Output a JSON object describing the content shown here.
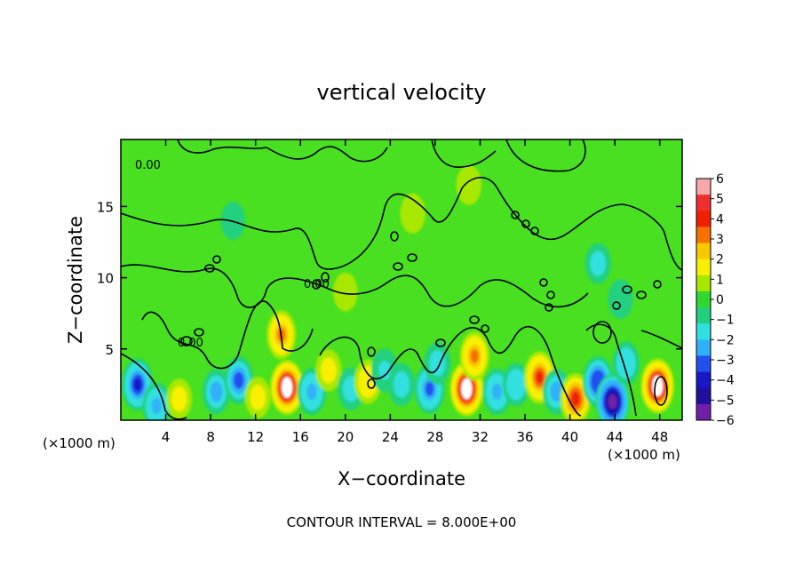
{
  "chart_data": {
    "type": "heatmap",
    "title": "vertical velocity",
    "xlabel": "X−coordinate",
    "ylabel": "Z−coordinate",
    "x_unit": "(×1000 m)",
    "z_unit": "(×1000 m)",
    "footer": "CONTOUR INTERVAL = 8.000E+00",
    "xlim": [
      0,
      50
    ],
    "ylim": [
      0,
      19.7
    ],
    "x_ticks": [
      4,
      8,
      12,
      16,
      20,
      24,
      28,
      32,
      36,
      40,
      44,
      48
    ],
    "y_ticks": [
      5,
      10,
      15
    ],
    "colorbar": {
      "range": [
        -6,
        6
      ],
      "ticks": [
        "6",
        "5",
        "4",
        "3",
        "2",
        "1",
        "0",
        "−1",
        "−2",
        "−3",
        "−4",
        "−5",
        "−6"
      ],
      "colors": [
        "#f8a8a8",
        "#f03030",
        "#f02000",
        "#f87000",
        "#f8c800",
        "#f8f000",
        "#a8e800",
        "#30d830",
        "#20d080",
        "#30e0e0",
        "#30b0f8",
        "#2050f0",
        "#1818c8",
        "#2010a0",
        "#7020a8"
      ]
    },
    "contour_label": "0.00",
    "features": [
      {
        "x": 1.5,
        "z": 2.5,
        "w": -3.8
      },
      {
        "x": 3.2,
        "z": 1.0,
        "w": -2.5
      },
      {
        "x": 5.2,
        "z": 1.5,
        "w": 1.2
      },
      {
        "x": 8.5,
        "z": 2.0,
        "w": -2.2
      },
      {
        "x": 10.5,
        "z": 2.8,
        "w": -2.8
      },
      {
        "x": 12.2,
        "z": 1.6,
        "w": 1.3
      },
      {
        "x": 14.8,
        "z": 2.3,
        "w": 6.0
      },
      {
        "x": 14.3,
        "z": 6.0,
        "w": 3.0
      },
      {
        "x": 17.0,
        "z": 2.0,
        "w": -2.6
      },
      {
        "x": 18.5,
        "z": 3.5,
        "w": 1.4
      },
      {
        "x": 20.5,
        "z": 2.2,
        "w": -1.6
      },
      {
        "x": 22.0,
        "z": 2.7,
        "w": 2.0
      },
      {
        "x": 23.5,
        "z": 3.5,
        "w": -1.7
      },
      {
        "x": 25.0,
        "z": 2.5,
        "w": -1.6
      },
      {
        "x": 27.5,
        "z": 2.2,
        "w": -3.2
      },
      {
        "x": 28.2,
        "z": 4.0,
        "w": -1.5
      },
      {
        "x": 30.8,
        "z": 2.2,
        "w": 6.0
      },
      {
        "x": 31.5,
        "z": 4.5,
        "w": 3.0
      },
      {
        "x": 33.5,
        "z": 2.0,
        "w": -2.5
      },
      {
        "x": 35.2,
        "z": 2.5,
        "w": -1.8
      },
      {
        "x": 37.3,
        "z": 3.0,
        "w": 3.8
      },
      {
        "x": 38.8,
        "z": 2.0,
        "w": -2.2
      },
      {
        "x": 40.5,
        "z": 1.5,
        "w": 3.6
      },
      {
        "x": 42.5,
        "z": 2.7,
        "w": -3.6
      },
      {
        "x": 43.8,
        "z": 1.3,
        "w": -6.0
      },
      {
        "x": 45.0,
        "z": 4.0,
        "w": -1.8
      },
      {
        "x": 47.8,
        "z": 2.4,
        "w": 6.0
      },
      {
        "x": 42.5,
        "z": 11.0,
        "w": -1.2
      },
      {
        "x": 44.5,
        "z": 8.5,
        "w": -0.9
      },
      {
        "x": 26.0,
        "z": 14.5,
        "w": 1.0
      },
      {
        "x": 31.0,
        "z": 16.5,
        "w": 1.0
      },
      {
        "x": 10.0,
        "z": 14.0,
        "w": -0.6
      },
      {
        "x": 20.0,
        "z": 9.0,
        "w": 0.7
      }
    ]
  }
}
